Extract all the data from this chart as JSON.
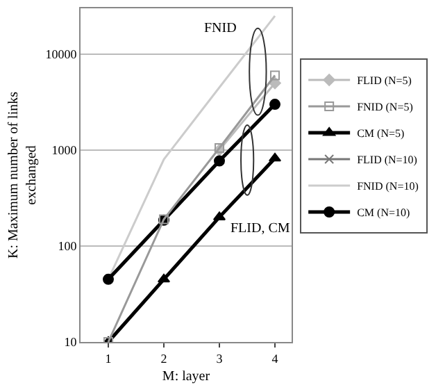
{
  "chart_data": {
    "type": "line",
    "xlabel": "M: layer",
    "ylabel": "K: Maximum number of links\nexchanged",
    "x": [
      1,
      2,
      3,
      4
    ],
    "xlim": [
      0.5,
      4.3
    ],
    "xticks": [
      1,
      2,
      3,
      4
    ],
    "ylim": [
      10,
      30000
    ],
    "yticks": [
      10,
      100,
      1000,
      10000
    ],
    "log": true,
    "grid": "y",
    "legend": "right",
    "series": [
      {
        "name": "FLID (N=5)",
        "color": "#bbbbbb",
        "marker": "diamond",
        "values": [
          null,
          null,
          1000,
          5000
        ]
      },
      {
        "name": "FNID (N=5)",
        "color": "#999999",
        "marker": "square",
        "values": [
          10,
          190,
          1050,
          6000
        ]
      },
      {
        "name": "CM (N=5)",
        "color": "#000000",
        "marker": "triangle",
        "values": [
          10,
          45,
          200,
          820
        ]
      },
      {
        "name": "FLID (N=10)",
        "color": "#777777",
        "marker": "cross",
        "values": [
          null,
          null,
          null,
          null
        ]
      },
      {
        "name": "FNID (N=10)",
        "color": "#cccccc",
        "marker": "none",
        "values": [
          45,
          800,
          4500,
          25000
        ]
      },
      {
        "name": "CM (N=10)",
        "color": "#000000",
        "marker": "circle",
        "values": [
          45,
          186,
          770,
          3000
        ]
      }
    ],
    "annotations": [
      "FNID",
      "FLID, CM"
    ]
  }
}
